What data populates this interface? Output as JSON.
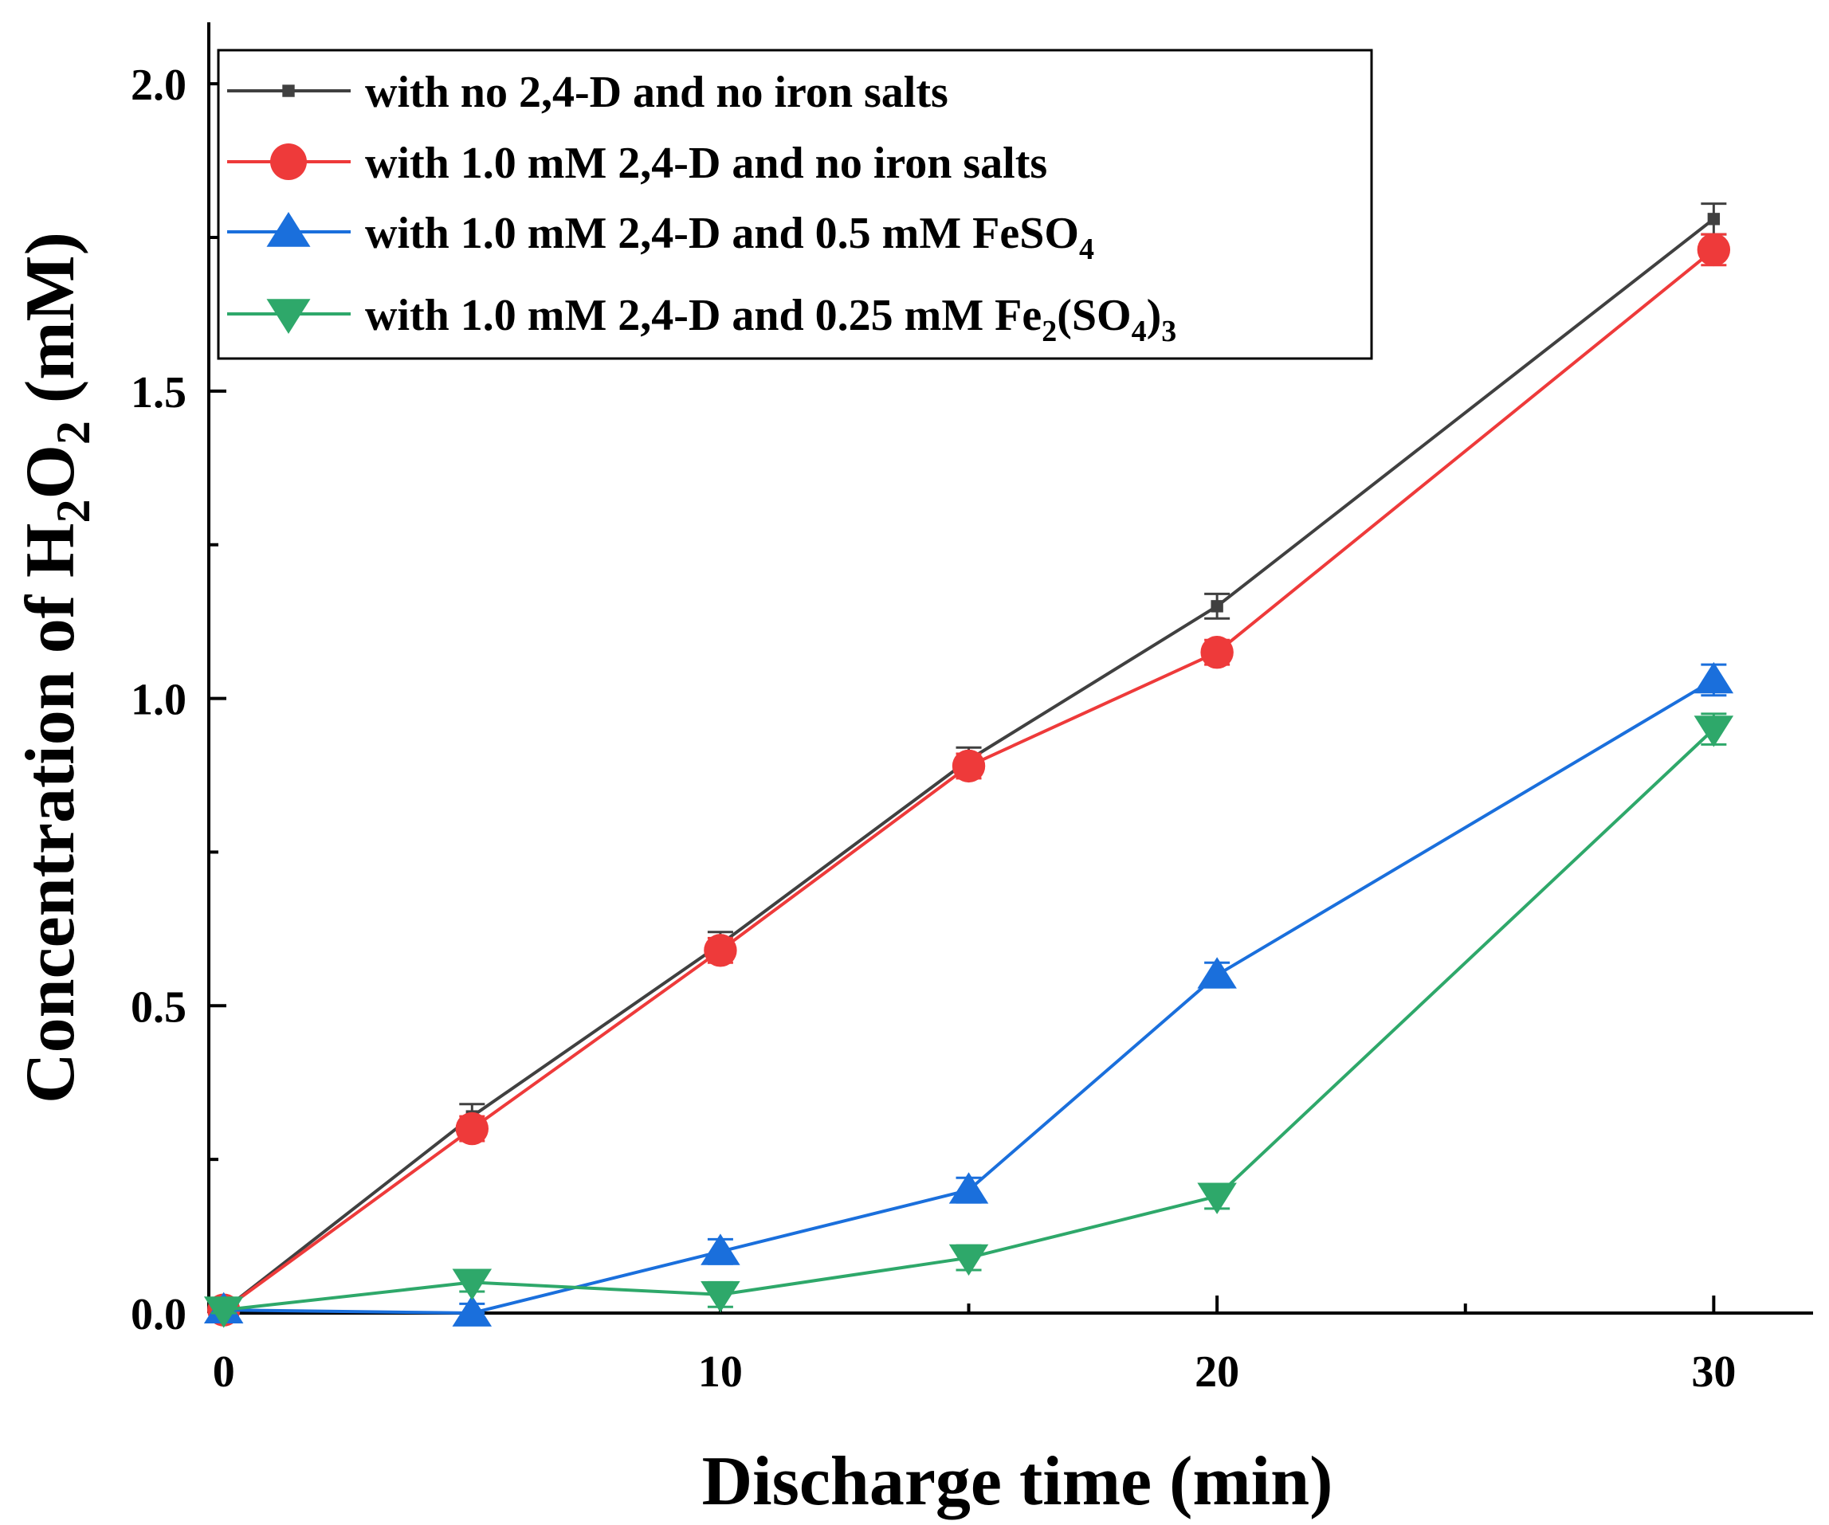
{
  "chart_data": {
    "type": "line",
    "title": "",
    "xlabel": "Discharge time (min)",
    "ylabel_parts": [
      "Concentration of H",
      "2",
      "O",
      "2",
      " (mM)"
    ],
    "xlim": [
      -0.3,
      32
    ],
    "ylim": [
      0,
      2.1
    ],
    "x_ticks": [
      0,
      10,
      20,
      30
    ],
    "x_tick_labels": [
      "0",
      "10",
      "20",
      "30"
    ],
    "x_minor_ticks": [
      5,
      15,
      25
    ],
    "y_ticks": [
      0,
      0.5,
      1.0,
      1.5,
      2.0
    ],
    "y_tick_labels": [
      "0.0",
      "0.5",
      "1.0",
      "1.5",
      "2.0"
    ],
    "y_minor_ticks": [
      0.25,
      0.75,
      1.25,
      1.75
    ],
    "legend_position": "top-left",
    "grid": false,
    "x": [
      0,
      5,
      10,
      15,
      20,
      30
    ],
    "series": [
      {
        "name": "with no 2,4-D and no iron salts",
        "legend_parts": [
          [
            "with no 2,4-D and no iron salts",
            "n"
          ]
        ],
        "color": "#404040",
        "marker": "square",
        "values": [
          0.005,
          0.32,
          0.6,
          0.9,
          1.15,
          1.78
        ],
        "errors": [
          0.01,
          0.02,
          0.02,
          0.02,
          0.02,
          0.025
        ]
      },
      {
        "name": "with 1.0 mM 2,4-D and no iron salts",
        "legend_parts": [
          [
            "with 1.0 mM 2,4-D and no iron salts",
            "n"
          ]
        ],
        "color": "#ee3a3a",
        "marker": "circle",
        "values": [
          0.005,
          0.3,
          0.59,
          0.89,
          1.075,
          1.73
        ],
        "errors": [
          0.01,
          0.02,
          0.02,
          0.02,
          0.02,
          0.025
        ]
      },
      {
        "name": "with 1.0 mM 2,4-D and 0.5 mM FeSO4",
        "legend_parts": [
          [
            "with 1.0 mM 2,4-D and 0.5 mM FeSO",
            "n"
          ],
          [
            "4",
            "sub"
          ]
        ],
        "color": "#1a6fdc",
        "marker": "triangle-up",
        "values": [
          0.005,
          0.0,
          0.1,
          0.2,
          0.55,
          1.03
        ],
        "errors": [
          0.01,
          0.015,
          0.02,
          0.02,
          0.02,
          0.025
        ]
      },
      {
        "name": "with 1.0 mM 2,4-D and 0.25 mM Fe2(SO4)3",
        "legend_parts": [
          [
            "with 1.0 mM 2,4-D and 0.25 mM Fe",
            "n"
          ],
          [
            "2",
            "sub"
          ],
          [
            "(SO",
            "n"
          ],
          [
            "4",
            "sub"
          ],
          [
            ")",
            "n"
          ],
          [
            "3",
            "sub"
          ]
        ],
        "color": "#2ea86a",
        "marker": "triangle-down",
        "values": [
          0.005,
          0.05,
          0.03,
          0.09,
          0.19,
          0.95
        ],
        "errors": [
          0.01,
          0.015,
          0.02,
          0.02,
          0.02,
          0.025
        ]
      }
    ]
  }
}
